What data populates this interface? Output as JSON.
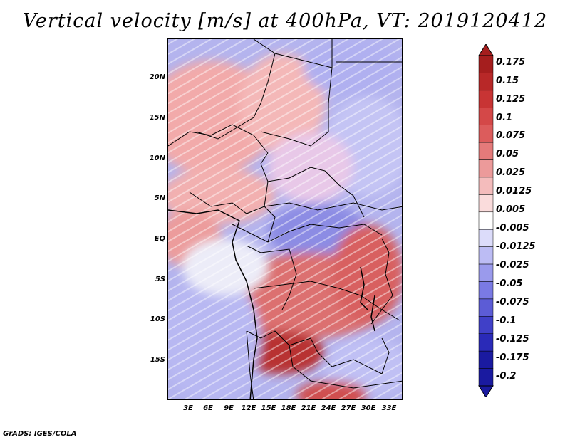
{
  "title": "Vertical velocity [m/s] at 400hPa, VT: 2019120412",
  "credit": "GrADS: IGES/COLA",
  "lat_labels": [
    "20N",
    "15N",
    "10N",
    "5N",
    "EQ",
    "5S",
    "10S",
    "15S"
  ],
  "lon_labels": [
    "3E",
    "6E",
    "9E",
    "12E",
    "15E",
    "18E",
    "21E",
    "24E",
    "27E",
    "30E",
    "33E"
  ],
  "colorbar": {
    "labels": [
      "0.175",
      "0.15",
      "0.125",
      "0.1",
      "0.075",
      "0.05",
      "0.025",
      "0.0125",
      "0.005",
      "-0.005",
      "-0.0125",
      "-0.025",
      "-0.05",
      "-0.075",
      "-0.1",
      "-0.125",
      "-0.175",
      "-0.2"
    ],
    "colors": [
      "#a51e1e",
      "#b82828",
      "#c83434",
      "#d44848",
      "#dc5c5c",
      "#e47a7a",
      "#ec9a9a",
      "#f4bcbc",
      "#fadcdc",
      "#ffffff",
      "#dcdcfa",
      "#bcbcf4",
      "#9a9aec",
      "#7a7ae4",
      "#5c5cd6",
      "#4040c8",
      "#2a2ab8",
      "#1a1aa0"
    ]
  }
}
